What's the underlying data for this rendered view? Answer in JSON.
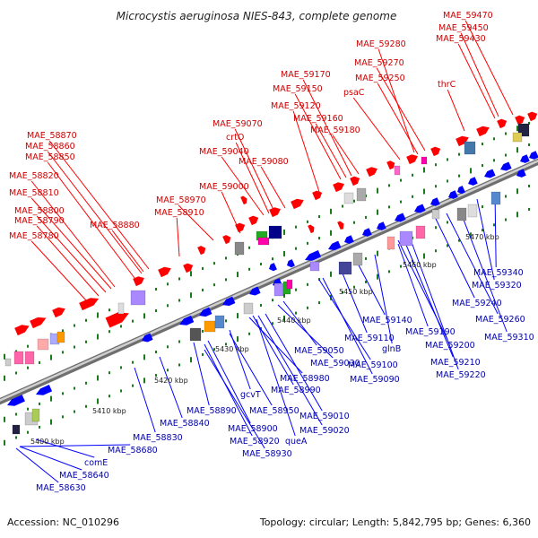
{
  "title": "Microcystis aeruginosa NIES-843, complete genome",
  "accession": "Accession: NC_010296",
  "summary": "Topology: circular; Length: 5,842,795 bp; Genes: 6,360",
  "colors": {
    "forward_strand": "#ff0000",
    "reverse_strand": "#0000ff",
    "backbone": "#999999",
    "tick": "#1a7a1a",
    "forward_label": "#cc0000",
    "reverse_label": "#0000aa"
  },
  "kbp_ticks": [
    "5400 kbp",
    "5410 kbp",
    "5420 kbp",
    "5430 kbp",
    "5440 kbp",
    "5450 kbp",
    "5460 kbp",
    "5470 kbp"
  ],
  "forward_genes": [
    "MAE_58780",
    "MAE_58790",
    "MAE_58800",
    "MAE_58810",
    "MAE_58820",
    "MAE_58850",
    "MAE_58860",
    "MAE_58870",
    "MAE_58880",
    "MAE_58910",
    "MAE_58970",
    "MAE_59000",
    "MAE_59040",
    "crtO",
    "MAE_59070",
    "MAE_59080",
    "MAE_59120",
    "MAE_59150",
    "MAE_59160",
    "MAE_59170",
    "MAE_59180",
    "psaC",
    "MAE_59250",
    "MAE_59270",
    "MAE_59280",
    "thrC",
    "MAE_59430",
    "MAE_59450",
    "MAE_59470"
  ],
  "reverse_genes": [
    "MAE_58630",
    "MAE_58640",
    "comE",
    "MAE_58680",
    "MAE_58830",
    "MAE_58840",
    "MAE_58890",
    "MAE_58900",
    "MAE_58920",
    "MAE_58930",
    "gcvT",
    "MAE_58950",
    "MAE_58980",
    "MAE_58990",
    "queA",
    "MAE_59010",
    "MAE_59020",
    "MAE_59030",
    "MAE_59050",
    "MAE_59090",
    "MAE_59100",
    "MAE_59110",
    "MAE_59140",
    "glnB",
    "MAE_59190",
    "MAE_59200",
    "MAE_59210",
    "MAE_59220",
    "MAE_59240",
    "MAE_59260",
    "MAE_59310",
    "MAE_59320",
    "MAE_59340"
  ]
}
